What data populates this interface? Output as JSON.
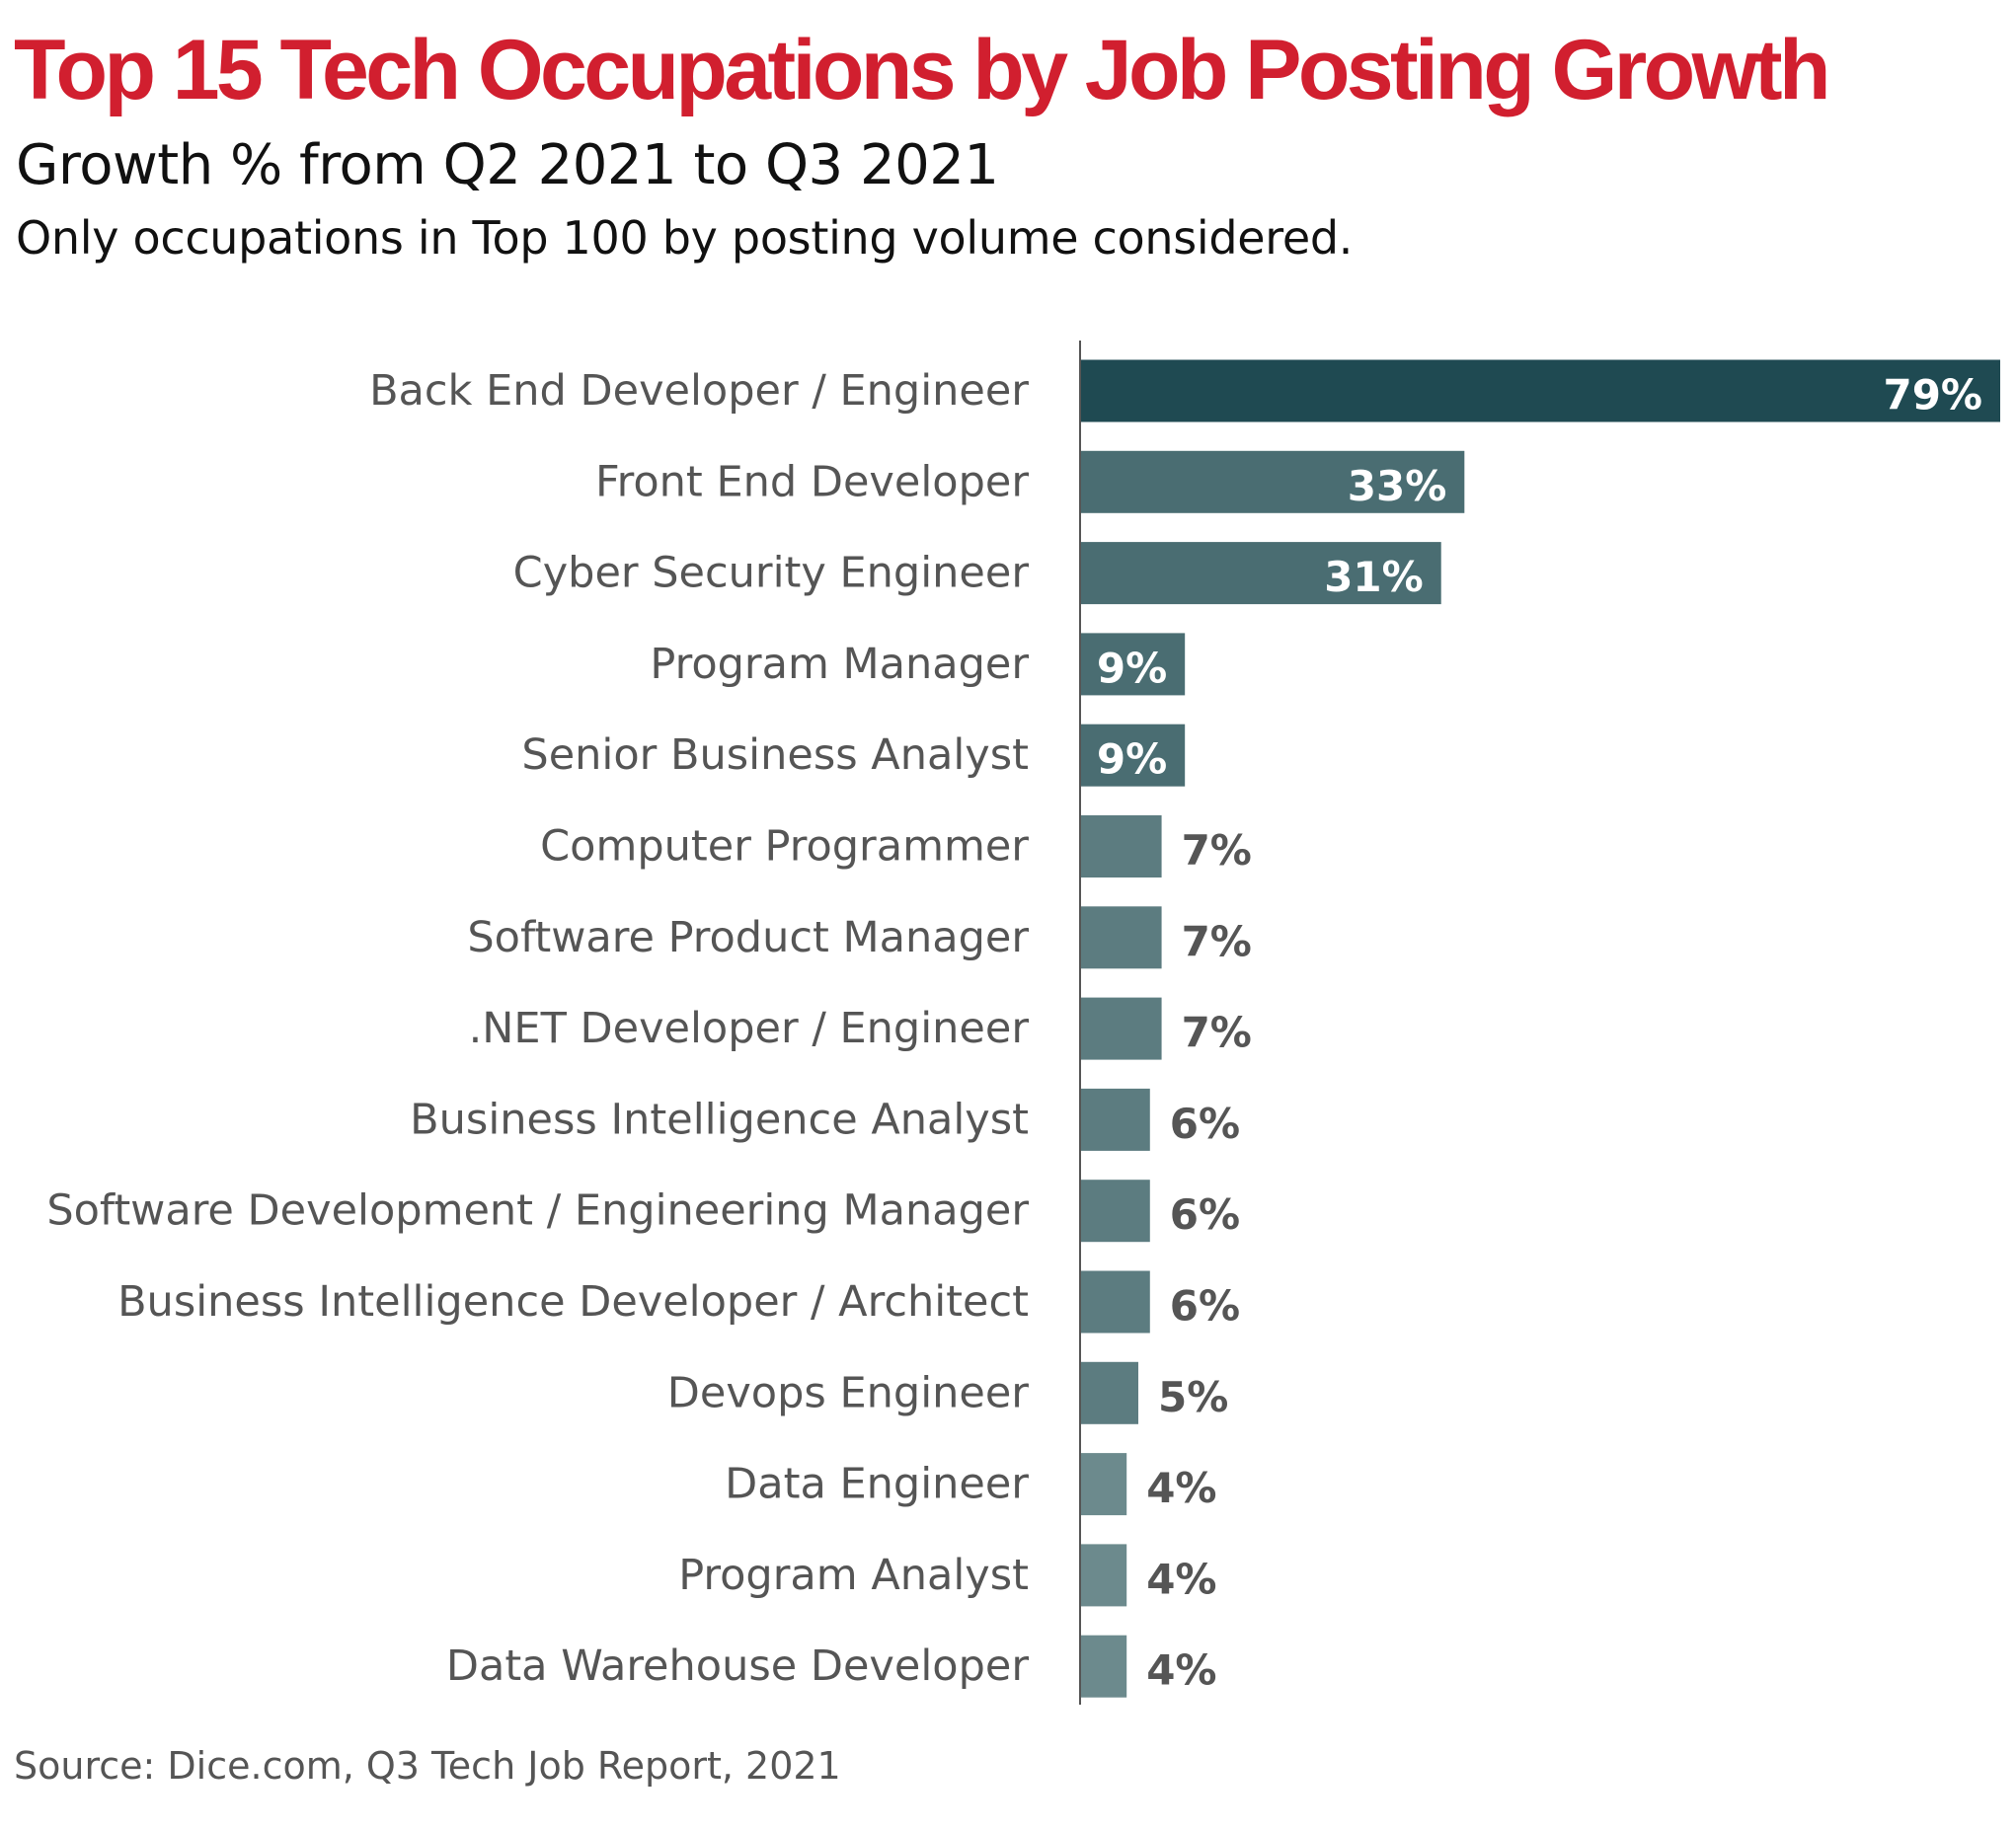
{
  "chart_data": {
    "type": "bar",
    "orientation": "horizontal",
    "title": "Top 15 Tech Occupations by Job Posting Growth",
    "subtitle": "Growth % from Q2 2021 to Q3 2021",
    "note": "Only occupations in Top 100 by posting volume considered.",
    "source": "Source: Dice.com, Q3 Tech Job Report, 2021",
    "categories": [
      "Back End Developer / Engineer",
      "Front End Developer",
      "Cyber Security Engineer",
      "Program Manager",
      "Senior Business Analyst",
      "Computer Programmer",
      "Software Product Manager",
      ".NET Developer / Engineer",
      "Business Intelligence Analyst",
      "Software Development / Engineering Manager",
      "Business Intelligence Developer / Architect",
      "Devops Engineer",
      "Data Engineer",
      "Program Analyst",
      "Data Warehouse Developer"
    ],
    "values": [
      79,
      33,
      31,
      9,
      9,
      7,
      7,
      7,
      6,
      6,
      6,
      5,
      4,
      4,
      4
    ],
    "value_labels": [
      "79%",
      "33%",
      "31%",
      "9%",
      "9%",
      "7%",
      "7%",
      "7%",
      "6%",
      "6%",
      "6%",
      "5%",
      "4%",
      "4%",
      "4%"
    ],
    "unit": "%",
    "xlim": [
      0,
      79
    ],
    "grid": false,
    "legend": "none",
    "colors": {
      "title": "#d11f2f",
      "bar_top": "#1f4a52",
      "bar_high": "#4a6d72",
      "bar_mid": "#5c7c80",
      "bar_low": "#6c8a8d",
      "axis": "#555555",
      "label_inside": "#ffffff",
      "label_outside": "#555555"
    }
  }
}
